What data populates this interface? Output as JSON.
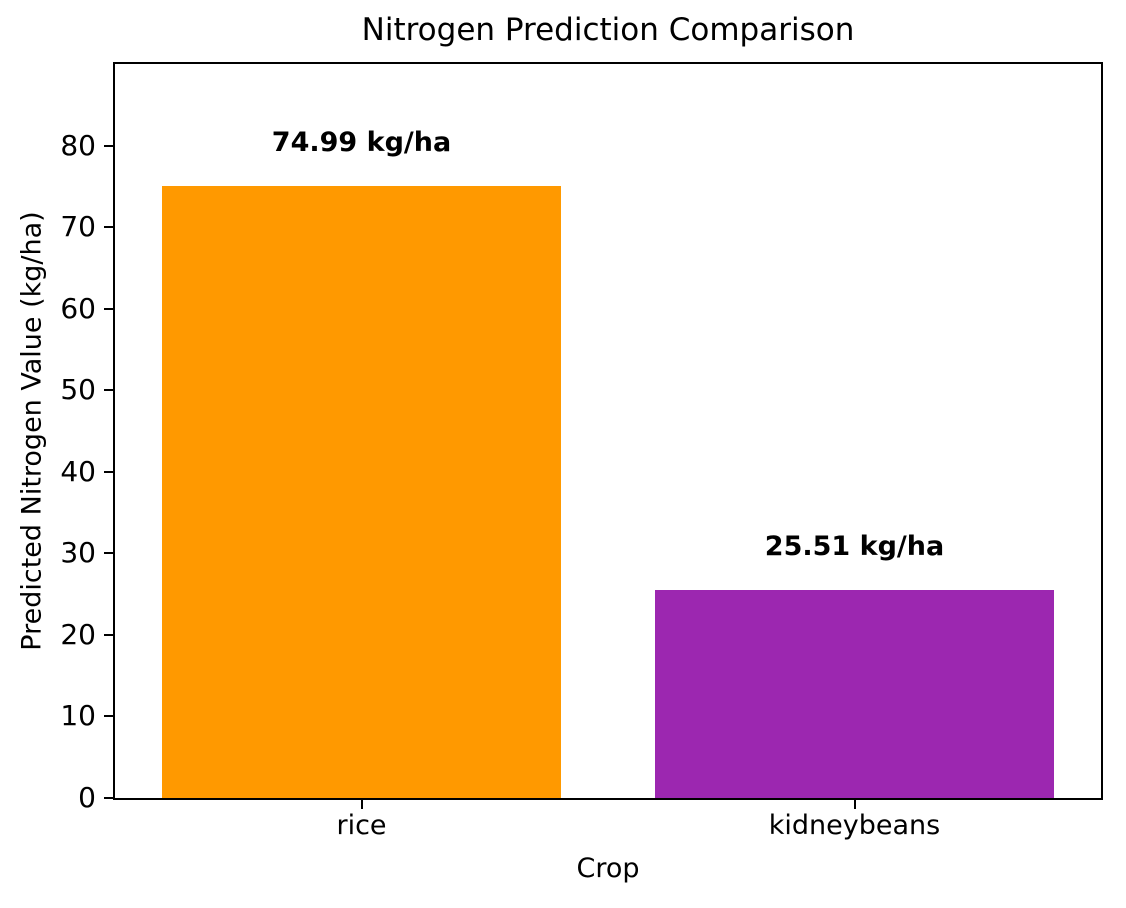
{
  "chart_data": {
    "type": "bar",
    "title": "Nitrogen Prediction Comparison",
    "xlabel": "Crop",
    "ylabel": "Predicted Nitrogen Value (kg/ha)",
    "categories": [
      "rice",
      "kidneybeans"
    ],
    "values": [
      74.99,
      25.51
    ],
    "bar_value_labels": [
      "74.99 kg/ha",
      "25.51 kg/ha"
    ],
    "bar_colors": [
      "#FF9900",
      "#9C27B0"
    ],
    "ylim": [
      0,
      90
    ],
    "yticks": [
      0,
      10,
      20,
      30,
      40,
      50,
      60,
      70,
      80
    ],
    "grid": false,
    "legend_position": "none",
    "background_color": "#FFFFFF",
    "text_color": "#000000"
  }
}
